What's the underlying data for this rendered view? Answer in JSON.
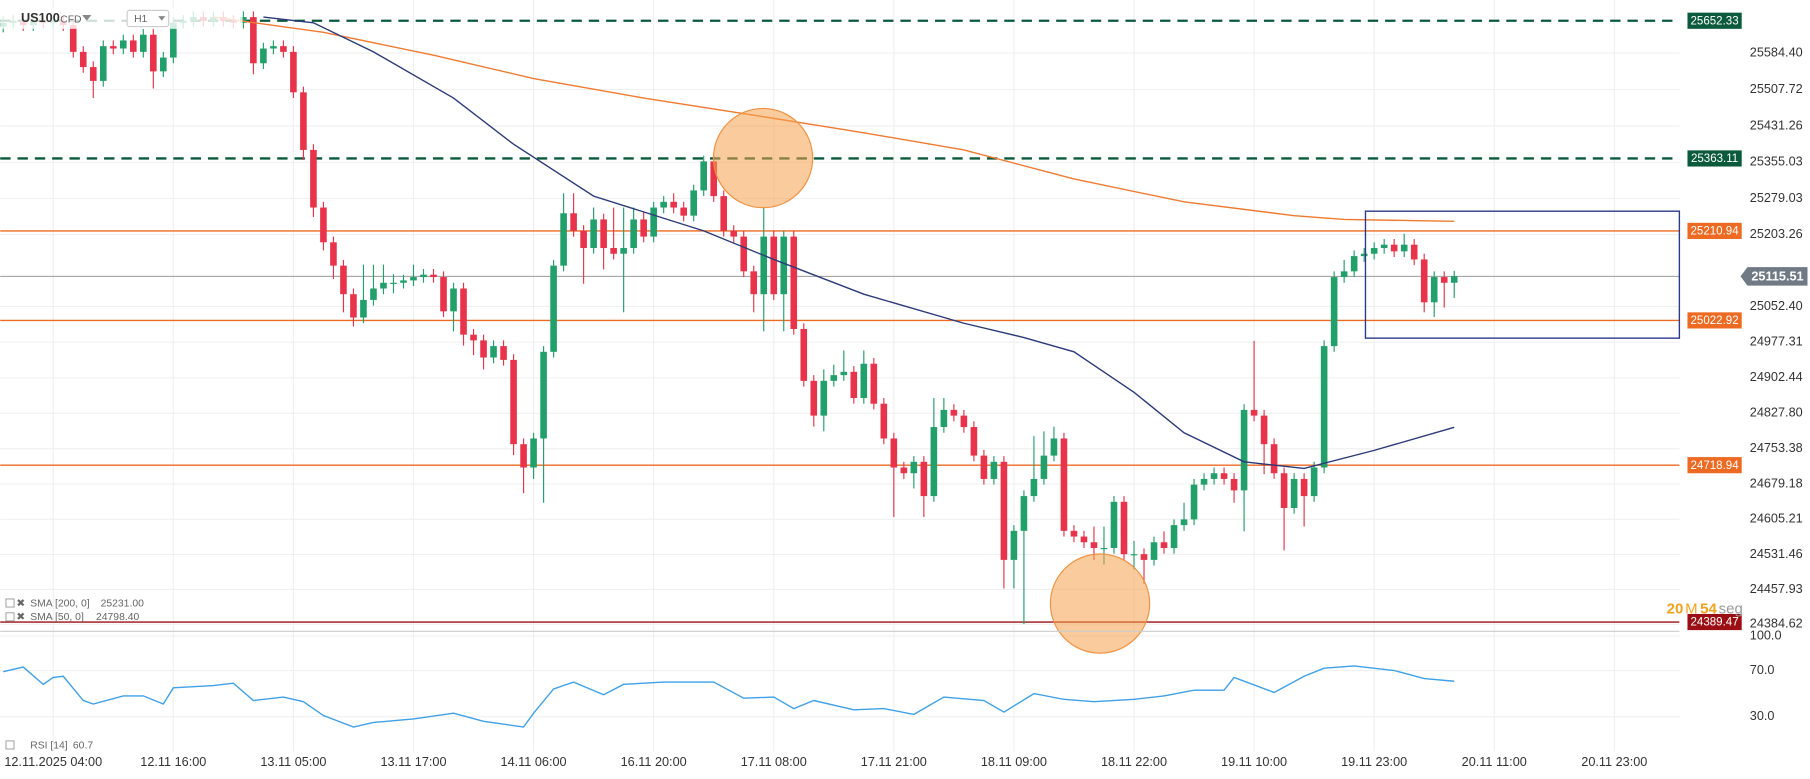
{
  "header": {
    "symbol": "US100",
    "kind": "CFD",
    "timeframe": "H1"
  },
  "countdown": {
    "minutes": "20",
    "minutes_unit": "M",
    "seconds": "54",
    "seconds_unit": "seg"
  },
  "chart_data": {
    "type": "candlestick",
    "up_color": "#22a06b",
    "down_color": "#e8334a",
    "open": [
      25640,
      25648,
      25652,
      25643,
      25652,
      25648,
      25652,
      25643,
      25587,
      25555,
      25526,
      25599,
      25594,
      25611,
      25587,
      25623,
      25546,
      25575,
      25648,
      25652,
      25660,
      25652,
      25660,
      25652,
      25648,
      25660,
      25563,
      25594,
      25599,
      25587,
      25502,
      25381,
      25260,
      25187,
      25138,
      25078,
      25029,
      25066,
      25090,
      25102,
      25102,
      25107,
      25114,
      25119,
      25114,
      25042,
      25090,
      24993,
      24981,
      24945,
      24969,
      24940,
      24763,
      24714,
      24775,
      24957,
      25138,
      25248,
      25211,
      25175,
      25235,
      25175,
      25163,
      25175,
      25235,
      25199,
      25260,
      25272,
      25260,
      25243,
      25296,
      25357,
      25284,
      25211,
      25199,
      25126,
      25078,
      25199,
      25078,
      25199,
      25005,
      24896,
      24823,
      24896,
      24908,
      24915,
      24860,
      24932,
      24848,
      24775,
      24714,
      24702,
      24726,
      24654,
      24799,
      24835,
      24823,
      24799,
      24739,
      24690,
      24726,
      24520,
      24581,
      24654,
      24690,
      24739,
      24775,
      24581,
      24569,
      24557,
      24545,
      24545,
      24642,
      24532,
      24532,
      24520,
      24557,
      24545,
      24593,
      24605,
      24678,
      24690,
      24702,
      24690,
      24666,
      24835,
      24823,
      24763,
      24702,
      24629,
      24690,
      24654,
      24714,
      24969,
      25114,
      25126,
      25158,
      25163,
      25175,
      25182,
      25168,
      25182,
      25151,
      25061,
      25114,
      25102
    ],
    "high": [
      25662,
      25664,
      25664,
      25664,
      25664,
      25664,
      25664,
      25655,
      25599,
      25567,
      25611,
      25611,
      25623,
      25623,
      25635,
      25635,
      25587,
      25660,
      25664,
      25672,
      25672,
      25672,
      25672,
      25664,
      25672,
      25672,
      25606,
      25611,
      25611,
      25599,
      25514,
      25393,
      25272,
      25199,
      25150,
      25090,
      25140,
      25140,
      25140,
      25120,
      25119,
      25140,
      25131,
      25131,
      25126,
      25102,
      25102,
      25005,
      24993,
      24981,
      24981,
      24952,
      24775,
      24787,
      24969,
      25150,
      25290,
      25290,
      25223,
      25260,
      25247,
      25260,
      25260,
      25260,
      25250,
      25272,
      25284,
      25290,
      25272,
      25308,
      25369,
      25369,
      25296,
      25223,
      25211,
      25138,
      25260,
      25211,
      25211,
      25211,
      25017,
      24908,
      24920,
      24930,
      24960,
      24927,
      24960,
      24944,
      24860,
      24787,
      24726,
      24738,
      24738,
      24860,
      24860,
      24847,
      24835,
      24811,
      24751,
      24738,
      24738,
      24593,
      24666,
      24780,
      24790,
      24800,
      24787,
      24593,
      24581,
      24590,
      24590,
      24654,
      24654,
      24560,
      24544,
      24569,
      24580,
      24605,
      24640,
      24690,
      24702,
      24714,
      24714,
      24702,
      24847,
      24980,
      24835,
      24775,
      24714,
      24702,
      24702,
      24726,
      24981,
      25126,
      25150,
      25170,
      25175,
      25187,
      25194,
      25194,
      25205,
      25194,
      25163,
      25126,
      25126,
      25127
    ],
    "low": [
      25628,
      25636,
      25631,
      25631,
      25636,
      25636,
      25631,
      25575,
      25543,
      25490,
      25514,
      25582,
      25582,
      25575,
      25575,
      25510,
      25534,
      25563,
      25636,
      25640,
      25640,
      25640,
      25640,
      25636,
      25636,
      25540,
      25551,
      25582,
      25575,
      25490,
      25360,
      25240,
      25170,
      25110,
      25040,
      25010,
      25017,
      25054,
      25078,
      25080,
      25090,
      25095,
      25102,
      25102,
      25030,
      25000,
      24970,
      24950,
      24920,
      24933,
      24928,
      24740,
      24660,
      24690,
      24640,
      24945,
      25126,
      25199,
      25100,
      25163,
      25130,
      25151,
      25040,
      25163,
      25187,
      25187,
      25248,
      25248,
      25231,
      25231,
      25284,
      25272,
      25199,
      25187,
      25114,
      25040,
      25000,
      25066,
      25000,
      24993,
      24884,
      24800,
      24790,
      24884,
      24896,
      24848,
      24848,
      24836,
      24763,
      24610,
      24690,
      24670,
      24610,
      24642,
      24787,
      24811,
      24787,
      24727,
      24678,
      24678,
      24460,
      24460,
      24385,
      24642,
      24678,
      24727,
      24569,
      24557,
      24545,
      24520,
      24510,
      24533,
      24520,
      24500,
      24470,
      24508,
      24533,
      24533,
      24581,
      24593,
      24666,
      24678,
      24678,
      24640,
      24580,
      24811,
      24700,
      24690,
      24540,
      24617,
      24590,
      24642,
      24702,
      24957,
      25102,
      25114,
      25146,
      25151,
      25163,
      25156,
      25156,
      25139,
      25040,
      25030,
      25050,
      25070
    ],
    "close": [
      25648,
      25652,
      25643,
      25652,
      25648,
      25652,
      25643,
      25587,
      25555,
      25526,
      25599,
      25594,
      25611,
      25587,
      25623,
      25546,
      25575,
      25648,
      25652,
      25660,
      25652,
      25660,
      25652,
      25648,
      25660,
      25563,
      25594,
      25599,
      25587,
      25502,
      25381,
      25260,
      25187,
      25138,
      25078,
      25029,
      25066,
      25090,
      25102,
      25102,
      25107,
      25114,
      25119,
      25114,
      25042,
      25090,
      24993,
      24981,
      24945,
      24969,
      24940,
      24763,
      24714,
      24775,
      24957,
      25138,
      25248,
      25211,
      25175,
      25235,
      25175,
      25163,
      25175,
      25235,
      25199,
      25260,
      25272,
      25260,
      25243,
      25296,
      25357,
      25284,
      25211,
      25199,
      25126,
      25078,
      25199,
      25078,
      25199,
      25005,
      24896,
      24823,
      24896,
      24908,
      24915,
      24860,
      24932,
      24848,
      24775,
      24714,
      24702,
      24726,
      24654,
      24799,
      24835,
      24823,
      24799,
      24739,
      24690,
      24726,
      24520,
      24581,
      24654,
      24690,
      24739,
      24775,
      24581,
      24569,
      24557,
      24545,
      24545,
      24642,
      24532,
      24532,
      24520,
      24557,
      24545,
      24593,
      24605,
      24678,
      24690,
      24702,
      24690,
      24666,
      24835,
      24823,
      24763,
      24702,
      24629,
      24690,
      24654,
      24714,
      24969,
      25114,
      25126,
      25158,
      25163,
      25175,
      25182,
      25168,
      25182,
      25151,
      25061,
      25114,
      25102,
      25115.51
    ],
    "xlim": [
      -0.3,
      167.5
    ],
    "ylim": [
      24374.9,
      25695.9
    ],
    "yticks": [
      {
        "value": 25584.4,
        "label": "25584.40"
      },
      25507.72,
      25431.26,
      25355.03,
      25279.03,
      25203.26,
      {
        "value": 25052.4,
        "label": "25052.40"
      },
      24977.31,
      24902.44,
      {
        "value": 24827.8,
        "label": "24827.80"
      },
      24753.38,
      24679.18,
      24605.21,
      24531.46,
      24457.93,
      24384.62
    ],
    "xticks": [
      {
        "value": 5,
        "label": "12.11.2025 04:00"
      },
      {
        "value": 17,
        "label": "12.11 16:00"
      },
      {
        "value": 29,
        "label": "13.11 05:00"
      },
      {
        "value": 41,
        "label": "13.11 17:00"
      },
      {
        "value": 53,
        "label": "14.11 06:00"
      },
      {
        "value": 65,
        "label": "16.11 20:00"
      },
      {
        "value": 77,
        "label": "17.11 08:00"
      },
      {
        "value": 89,
        "label": "17.11 21:00"
      },
      {
        "value": 101,
        "label": "18.11 09:00"
      },
      {
        "value": 113,
        "label": "18.11 22:00"
      },
      {
        "value": 125,
        "label": "19.11 10:00"
      },
      {
        "value": 137,
        "label": "19.11 23:00"
      },
      {
        "value": 149,
        "label": "20.11 11:00"
      },
      {
        "value": 161,
        "label": "20.11 23:00"
      }
    ],
    "grid": true,
    "levels": [
      {
        "value": 25652.33,
        "color": "#0b5a3c",
        "style": "dashed"
      },
      {
        "value": 25363.11,
        "color": "#0b5a3c",
        "style": "dashed"
      },
      {
        "value": 25210.94,
        "color": "#ee6a22",
        "style": "solid"
      },
      {
        "value": 25022.92,
        "color": "#ee6a22",
        "style": "solid"
      },
      {
        "value": 24718.94,
        "color": "#ee6a22",
        "style": "solid"
      },
      {
        "value": 24389.47,
        "color": "#9b0f14",
        "style": "solid"
      }
    ],
    "current_price": 25115.51,
    "series": [
      {
        "name": "SMA [200, 0]",
        "color": "#f07a30",
        "x": [
          21,
          32,
          43,
          53,
          64,
          75,
          86,
          96,
          107,
          118,
          129,
          134,
          145
        ],
        "values": [
          25660,
          25628,
          25580,
          25531,
          25490,
          25454,
          25417,
          25381,
          25320,
          25272,
          25243,
          25235,
          25231
        ],
        "value_label": "25231.00"
      },
      {
        "name": "SMA [50, 0]",
        "color": "#2b3a7a",
        "x": [
          26,
          31,
          37,
          45,
          51,
          59,
          70,
          77,
          86,
          96,
          102,
          107,
          113,
          118,
          124,
          130,
          137,
          145
        ],
        "values": [
          25660,
          25648,
          25587,
          25490,
          25393,
          25284,
          25211,
          25151,
          25078,
          25017,
          24987,
          24957,
          24872,
          24787,
          24726,
          24712,
          24750,
          24798.4
        ],
        "value_label": "24798.40"
      }
    ],
    "rsi": {
      "name": "RSI [14]",
      "color": "#3fa0e8",
      "ylim": [
        0,
        100
      ],
      "yticks": [
        {
          "value": 100,
          "label": "100.0"
        },
        {
          "value": 70,
          "label": "70.0"
        },
        {
          "value": 30,
          "label": "30.0"
        }
      ],
      "x": [
        0,
        2,
        4,
        5,
        6,
        8,
        9,
        12,
        14,
        16,
        17,
        21,
        23,
        25,
        28,
        30,
        32,
        35,
        37,
        41,
        45,
        48,
        52,
        53,
        55,
        57,
        60,
        62,
        66,
        71,
        74,
        77,
        79,
        81,
        85,
        88,
        91,
        94,
        98,
        100,
        103,
        106,
        109,
        113,
        116,
        119,
        122,
        123,
        127,
        130,
        132,
        135,
        139,
        142,
        145
      ],
      "values": [
        69,
        73,
        58,
        64,
        65,
        44,
        41,
        48,
        48,
        41,
        55,
        57,
        59,
        44,
        47,
        43,
        31,
        21,
        25,
        28,
        33,
        26,
        21,
        33,
        54,
        60,
        49,
        58,
        60,
        60,
        46,
        47,
        37,
        44,
        36,
        37,
        32,
        47,
        44,
        34,
        50,
        45,
        43,
        45,
        48,
        53,
        53,
        64,
        51,
        65,
        72,
        74,
        70,
        63,
        60.7
      ]
    }
  }
}
